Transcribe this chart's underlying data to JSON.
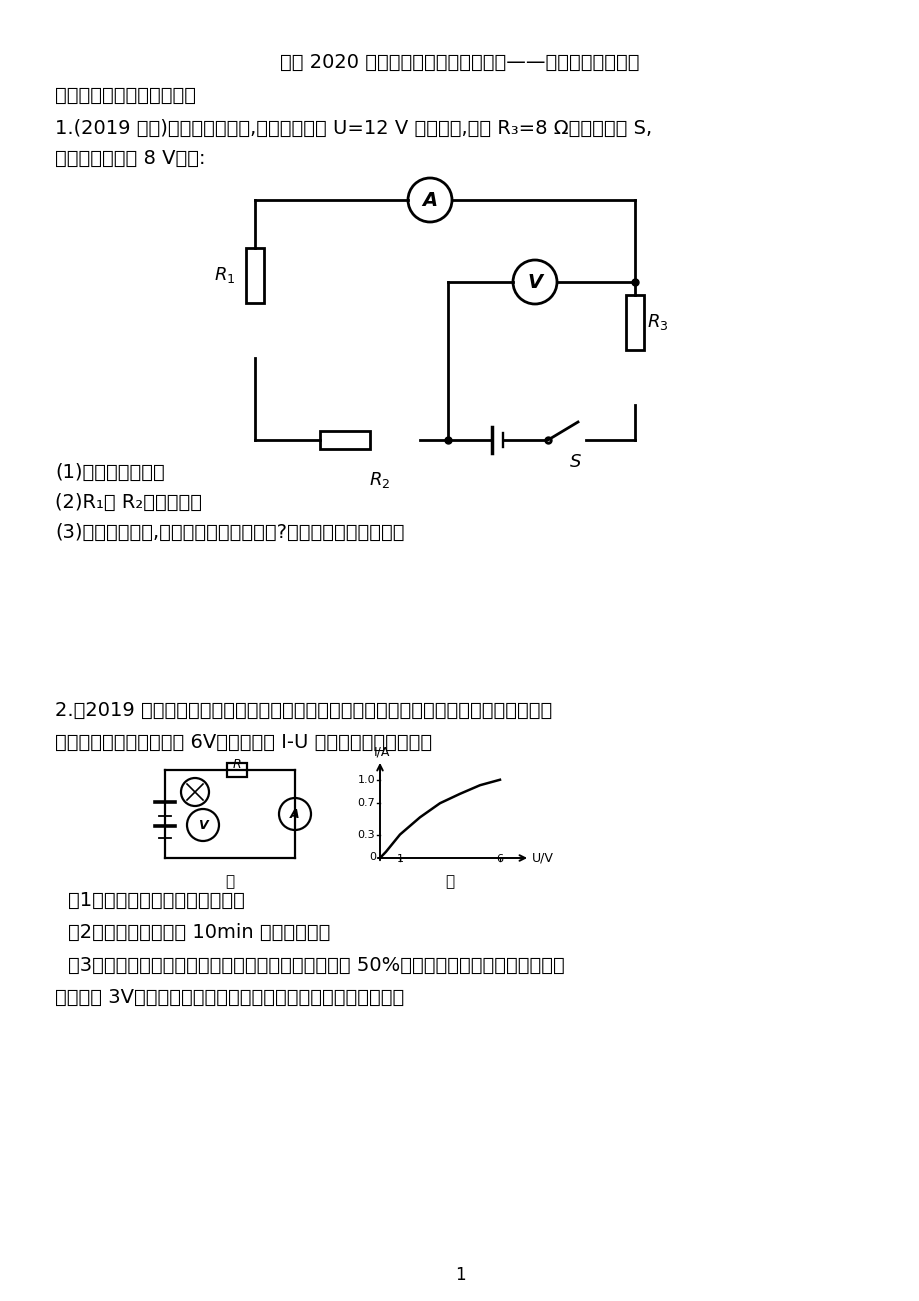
{
  "title": "备战 2020 中考物理重点知识强化训练——专题七：电学计算",
  "section1_title": "考点一：电功率、电能计算",
  "q1_text": "1.(2019 衡阳)如图所示电路中,已知电源电压 U=12 V 保持不变,电阻 R₃=8 Ω，闭合开关 S,",
  "q1_text2": "电压表的示数为 8 V。求:",
  "q1_sub1": "(1)电流表的示数。",
  "q1_sub2": "(2)R₁与 R₂阻值之和。",
  "q1_sub3": "(3)根据已知条件,你还能求出什么物理量?并求出该物理量的值。",
  "q2_text": "2.（2019 海南）小明根据如图甲所示的电路组装成调光灯，并进行测试。电源电压保持不",
  "q2_text2": "变，小灯泡的额定电压是 6V，小灯泡的 I-U 图像如图乙所示。求：",
  "q2_sub1": "（1）小灯泡正常发光时的电阻。",
  "q2_sub2": "（2）小灯泡正常发光 10min 消耗的电能。",
  "q2_sub3": "（3）经测算，小灯泡正常发光时的功率占电路总功率 50%，如果把灯光调暗，使小灯泡两",
  "q2_sub4": "端电压为 3V，小灯泡的实际功率占电路总功率的百分比是多少？",
  "page_num": "1",
  "bg_color": "#ffffff",
  "text_color": "#000000"
}
